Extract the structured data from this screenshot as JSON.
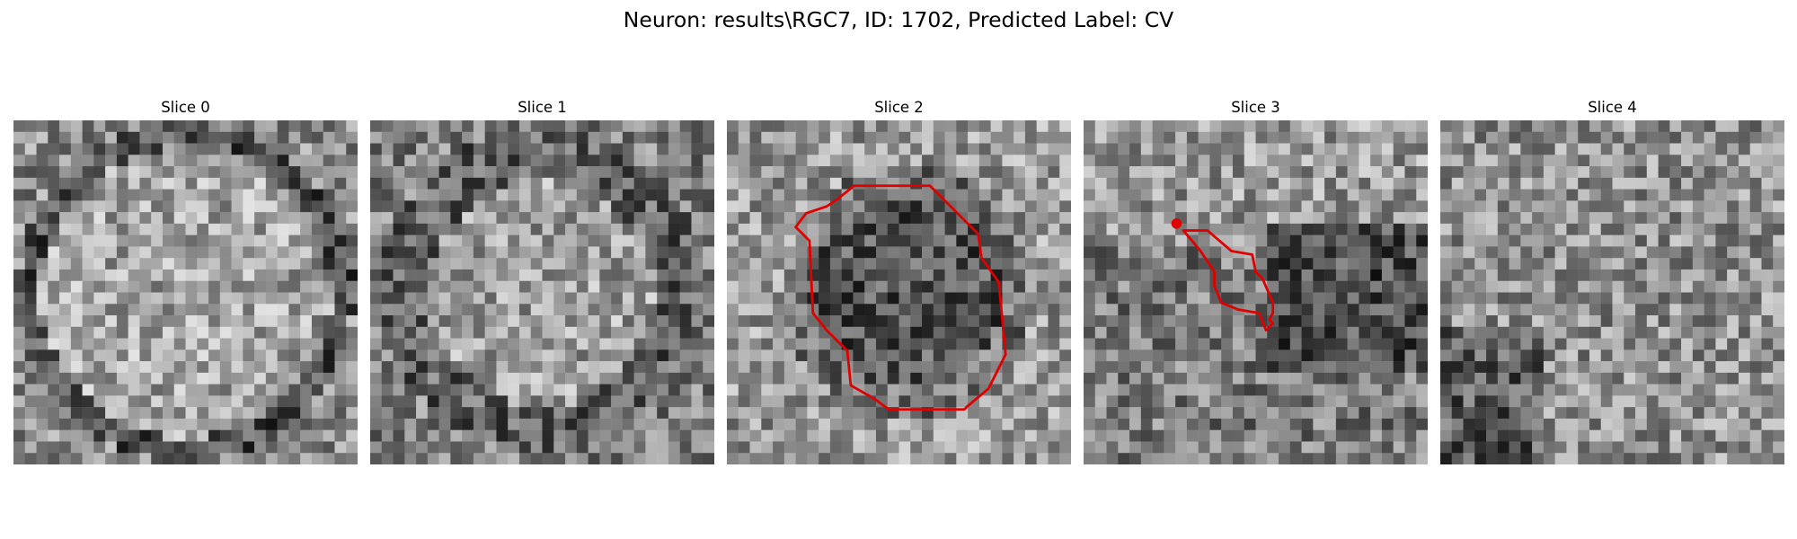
{
  "figure": {
    "title": "Neuron: results\\RGC7, ID: 1702, Predicted Label: CV",
    "contour_color": "#e00000",
    "colormap": "gray",
    "panels": [
      {
        "title": "Slice 0",
        "pattern": "ring-bright-center",
        "seed": 11,
        "contours": []
      },
      {
        "title": "Slice 1",
        "pattern": "ring-dark-edge",
        "seed": 23,
        "contours": []
      },
      {
        "title": "Slice 2",
        "pattern": "dark-blob",
        "seed": 37,
        "contours": [
          {
            "type": "polygon",
            "points": [
              [
                0.37,
                0.19
              ],
              [
                0.59,
                0.19
              ],
              [
                0.73,
                0.33
              ],
              [
                0.74,
                0.4
              ],
              [
                0.79,
                0.47
              ],
              [
                0.81,
                0.68
              ],
              [
                0.76,
                0.78
              ],
              [
                0.7,
                0.83
              ],
              [
                0.69,
                0.84
              ],
              [
                0.47,
                0.84
              ],
              [
                0.43,
                0.81
              ],
              [
                0.36,
                0.77
              ],
              [
                0.35,
                0.67
              ],
              [
                0.29,
                0.61
              ],
              [
                0.25,
                0.56
              ],
              [
                0.24,
                0.35
              ],
              [
                0.2,
                0.31
              ],
              [
                0.23,
                0.27
              ],
              [
                0.29,
                0.25
              ],
              [
                0.32,
                0.23
              ]
            ]
          }
        ]
      },
      {
        "title": "Slice 3",
        "pattern": "dark-right",
        "seed": 51,
        "contours": [
          {
            "type": "point",
            "points": [
              [
                0.27,
                0.3
              ]
            ]
          },
          {
            "type": "polygon",
            "points": [
              [
                0.29,
                0.32
              ],
              [
                0.36,
                0.32
              ],
              [
                0.43,
                0.38
              ],
              [
                0.49,
                0.39
              ],
              [
                0.5,
                0.44
              ],
              [
                0.52,
                0.46
              ],
              [
                0.55,
                0.53
              ],
              [
                0.55,
                0.56
              ],
              [
                0.54,
                0.58
              ],
              [
                0.55,
                0.59
              ],
              [
                0.53,
                0.61
              ],
              [
                0.51,
                0.56
              ],
              [
                0.45,
                0.55
              ],
              [
                0.4,
                0.53
              ],
              [
                0.38,
                0.48
              ],
              [
                0.38,
                0.44
              ],
              [
                0.34,
                0.38
              ]
            ]
          }
        ]
      },
      {
        "title": "Slice 4",
        "pattern": "mottled",
        "seed": 67,
        "contours": []
      }
    ]
  }
}
